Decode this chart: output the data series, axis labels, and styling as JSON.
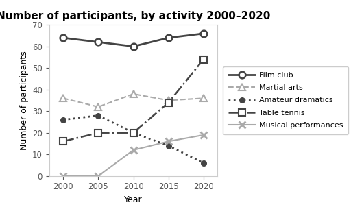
{
  "title": "Number of participants, by activity 2000–2020",
  "xlabel": "Year",
  "ylabel": "Number of participants",
  "years": [
    2000,
    2005,
    2010,
    2015,
    2020
  ],
  "series": {
    "Film club": {
      "values": [
        64,
        62,
        60,
        64,
        66
      ],
      "color": "#444444",
      "linestyle": "-",
      "marker": "o",
      "linewidth": 2.0,
      "markersize": 7,
      "markerfacecolor": "white",
      "markeredgewidth": 1.8
    },
    "Martial arts": {
      "values": [
        36,
        32,
        38,
        35,
        36
      ],
      "color": "#aaaaaa",
      "linestyle": "--",
      "marker": "^",
      "linewidth": 1.5,
      "markersize": 7,
      "markerfacecolor": "white",
      "markeredgewidth": 1.5
    },
    "Amateur dramatics": {
      "values": [
        26,
        28,
        20,
        14,
        6
      ],
      "color": "#444444",
      "linestyle": ":",
      "marker": "o",
      "linewidth": 2.0,
      "markersize": 5,
      "markerfacecolor": "#444444",
      "markeredgewidth": 1.5
    },
    "Table tennis": {
      "values": [
        16,
        20,
        20,
        34,
        54
      ],
      "color": "#444444",
      "linestyle": "-.",
      "marker": "s",
      "linewidth": 1.8,
      "markersize": 7,
      "markerfacecolor": "white",
      "markeredgewidth": 1.5
    },
    "Musical performances": {
      "values": [
        0,
        0,
        12,
        16,
        19
      ],
      "color": "#aaaaaa",
      "linestyle": "-",
      "marker": "x",
      "linewidth": 1.5,
      "markersize": 7,
      "markerfacecolor": "#aaaaaa",
      "markeredgewidth": 2.0
    }
  },
  "ylim": [
    0,
    70
  ],
  "yticks": [
    0,
    10,
    20,
    30,
    40,
    50,
    60,
    70
  ],
  "xticks": [
    2000,
    2005,
    2010,
    2015,
    2020
  ],
  "title_fontsize": 11,
  "axis_label_fontsize": 9,
  "tick_fontsize": 8.5,
  "legend_fontsize": 8
}
